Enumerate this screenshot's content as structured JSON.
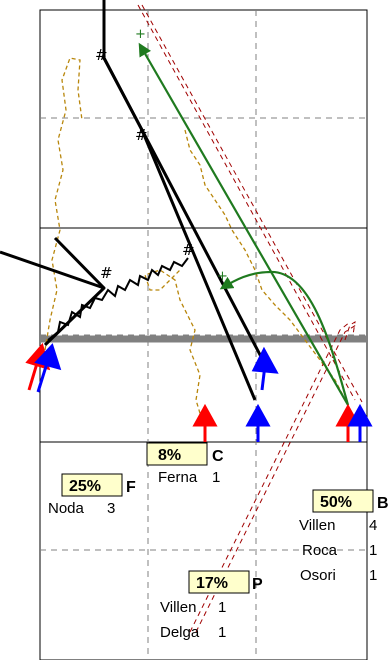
{
  "colors": {
    "black": "#000000",
    "green": "#1f7a1f",
    "orange": "#b8860b",
    "darkred": "#a00000",
    "red": "#ff0000",
    "blue": "#0000ff",
    "grey": "#808080",
    "label_bg": "#ffffcc"
  },
  "labels": [
    {
      "id": "c",
      "percent": "8%",
      "letter": "C",
      "players": [
        {
          "name": "Ferna",
          "count": "1"
        }
      ]
    },
    {
      "id": "f",
      "percent": "25%",
      "letter": "F",
      "players": [
        {
          "name": "Noda",
          "count": "3"
        }
      ]
    },
    {
      "id": "b",
      "percent": "50%",
      "letter": "B",
      "players": [
        {
          "name": "Villen",
          "count": "4"
        },
        {
          "name": "Roca",
          "count": "1"
        },
        {
          "name": "Osori",
          "count": "1"
        }
      ]
    },
    {
      "id": "p",
      "percent": "17%",
      "letter": "P",
      "players": [
        {
          "name": "Villen",
          "count": "1"
        },
        {
          "name": "Delga",
          "count": "1"
        }
      ]
    }
  ],
  "markers": {
    "hash": "#",
    "plus": "+"
  }
}
